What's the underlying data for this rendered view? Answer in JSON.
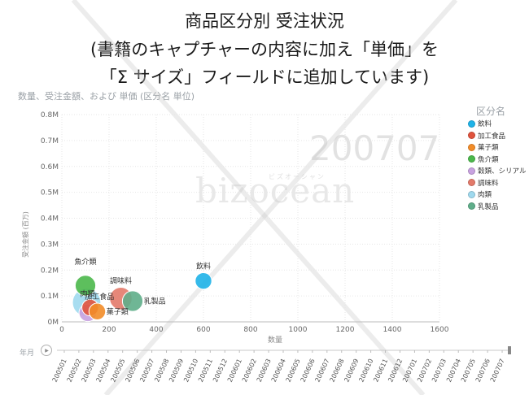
{
  "title": {
    "line1": "商品区分別 受注状況",
    "line2": "(書籍のキャプチャーの内容に加え「単価」を",
    "line3": "「Σ サイズ」フィールドに追加しています)"
  },
  "watermark": {
    "text": "bizocean",
    "sub": "ビズオーシャン"
  },
  "chart_data": {
    "type": "scatter",
    "subtitle": "数量、受注金額、および 単価 (区分名 単位)",
    "xlabel": "数量",
    "ylabel": "受注金額 (百万)",
    "xlim": [
      0,
      1600
    ],
    "ylim": [
      0,
      0.8
    ],
    "x_ticks": [
      "0",
      "200",
      "400",
      "600",
      "800",
      "1000",
      "1200",
      "1400",
      "1600"
    ],
    "y_ticks": [
      "0M",
      "0.1M",
      "0.2M",
      "0.3M",
      "0.4M",
      "0.5M",
      "0.6M",
      "0.7M",
      "0.8M"
    ],
    "grid": true,
    "legend_title": "区分名",
    "legend_position": "right",
    "play_axis": {
      "label": "年月",
      "current": "200707",
      "ticks": [
        "200501",
        "200502",
        "200503",
        "200504",
        "200505",
        "200506",
        "200507",
        "200508",
        "200509",
        "200510",
        "200511",
        "200512",
        "200601",
        "200602",
        "200603",
        "200604",
        "200605",
        "200606",
        "200607",
        "200608",
        "200609",
        "200610",
        "200611",
        "200612",
        "200701",
        "200702",
        "200703",
        "200704",
        "200705",
        "200706",
        "200707"
      ]
    },
    "series": [
      {
        "name": "飲料",
        "color": "#1fb3e8",
        "x": 600,
        "y": 0.158,
        "size": 0.35,
        "label": "飲料",
        "label_pos": "above"
      },
      {
        "name": "加工食品",
        "color": "#e0533d",
        "x": 120,
        "y": 0.055,
        "size": 0.35,
        "label": "",
        "label_pos": "none"
      },
      {
        "name": "菓子類",
        "color": "#f28c28",
        "x": 150,
        "y": 0.04,
        "size": 0.35,
        "label": "菓子類",
        "label_pos": "right"
      },
      {
        "name": "魚介類",
        "color": "#4bb84b",
        "x": 100,
        "y": 0.14,
        "size": 0.55,
        "label": "魚介類",
        "label_pos": "above-far"
      },
      {
        "name": "穀類、シリアル",
        "color": "#c8a2e0",
        "x": 110,
        "y": 0.035,
        "size": 0.4,
        "label": "",
        "label_pos": "none"
      },
      {
        "name": "調味料",
        "color": "#e37a6a",
        "x": 250,
        "y": 0.09,
        "size": 0.65,
        "label": "調味料",
        "label_pos": "above"
      },
      {
        "name": "肉類",
        "color": "#9fd9ee",
        "x": 105,
        "y": 0.075,
        "size": 0.95,
        "label": "肉類",
        "label_pos": "on-top"
      },
      {
        "name": "乳製品",
        "color": "#5fae8a",
        "x": 300,
        "y": 0.08,
        "size": 0.55,
        "label": "乳製品",
        "label_pos": "right"
      }
    ],
    "extra_labels": [
      {
        "text": "加工食品",
        "x": 125,
        "y": 0.088
      }
    ]
  }
}
